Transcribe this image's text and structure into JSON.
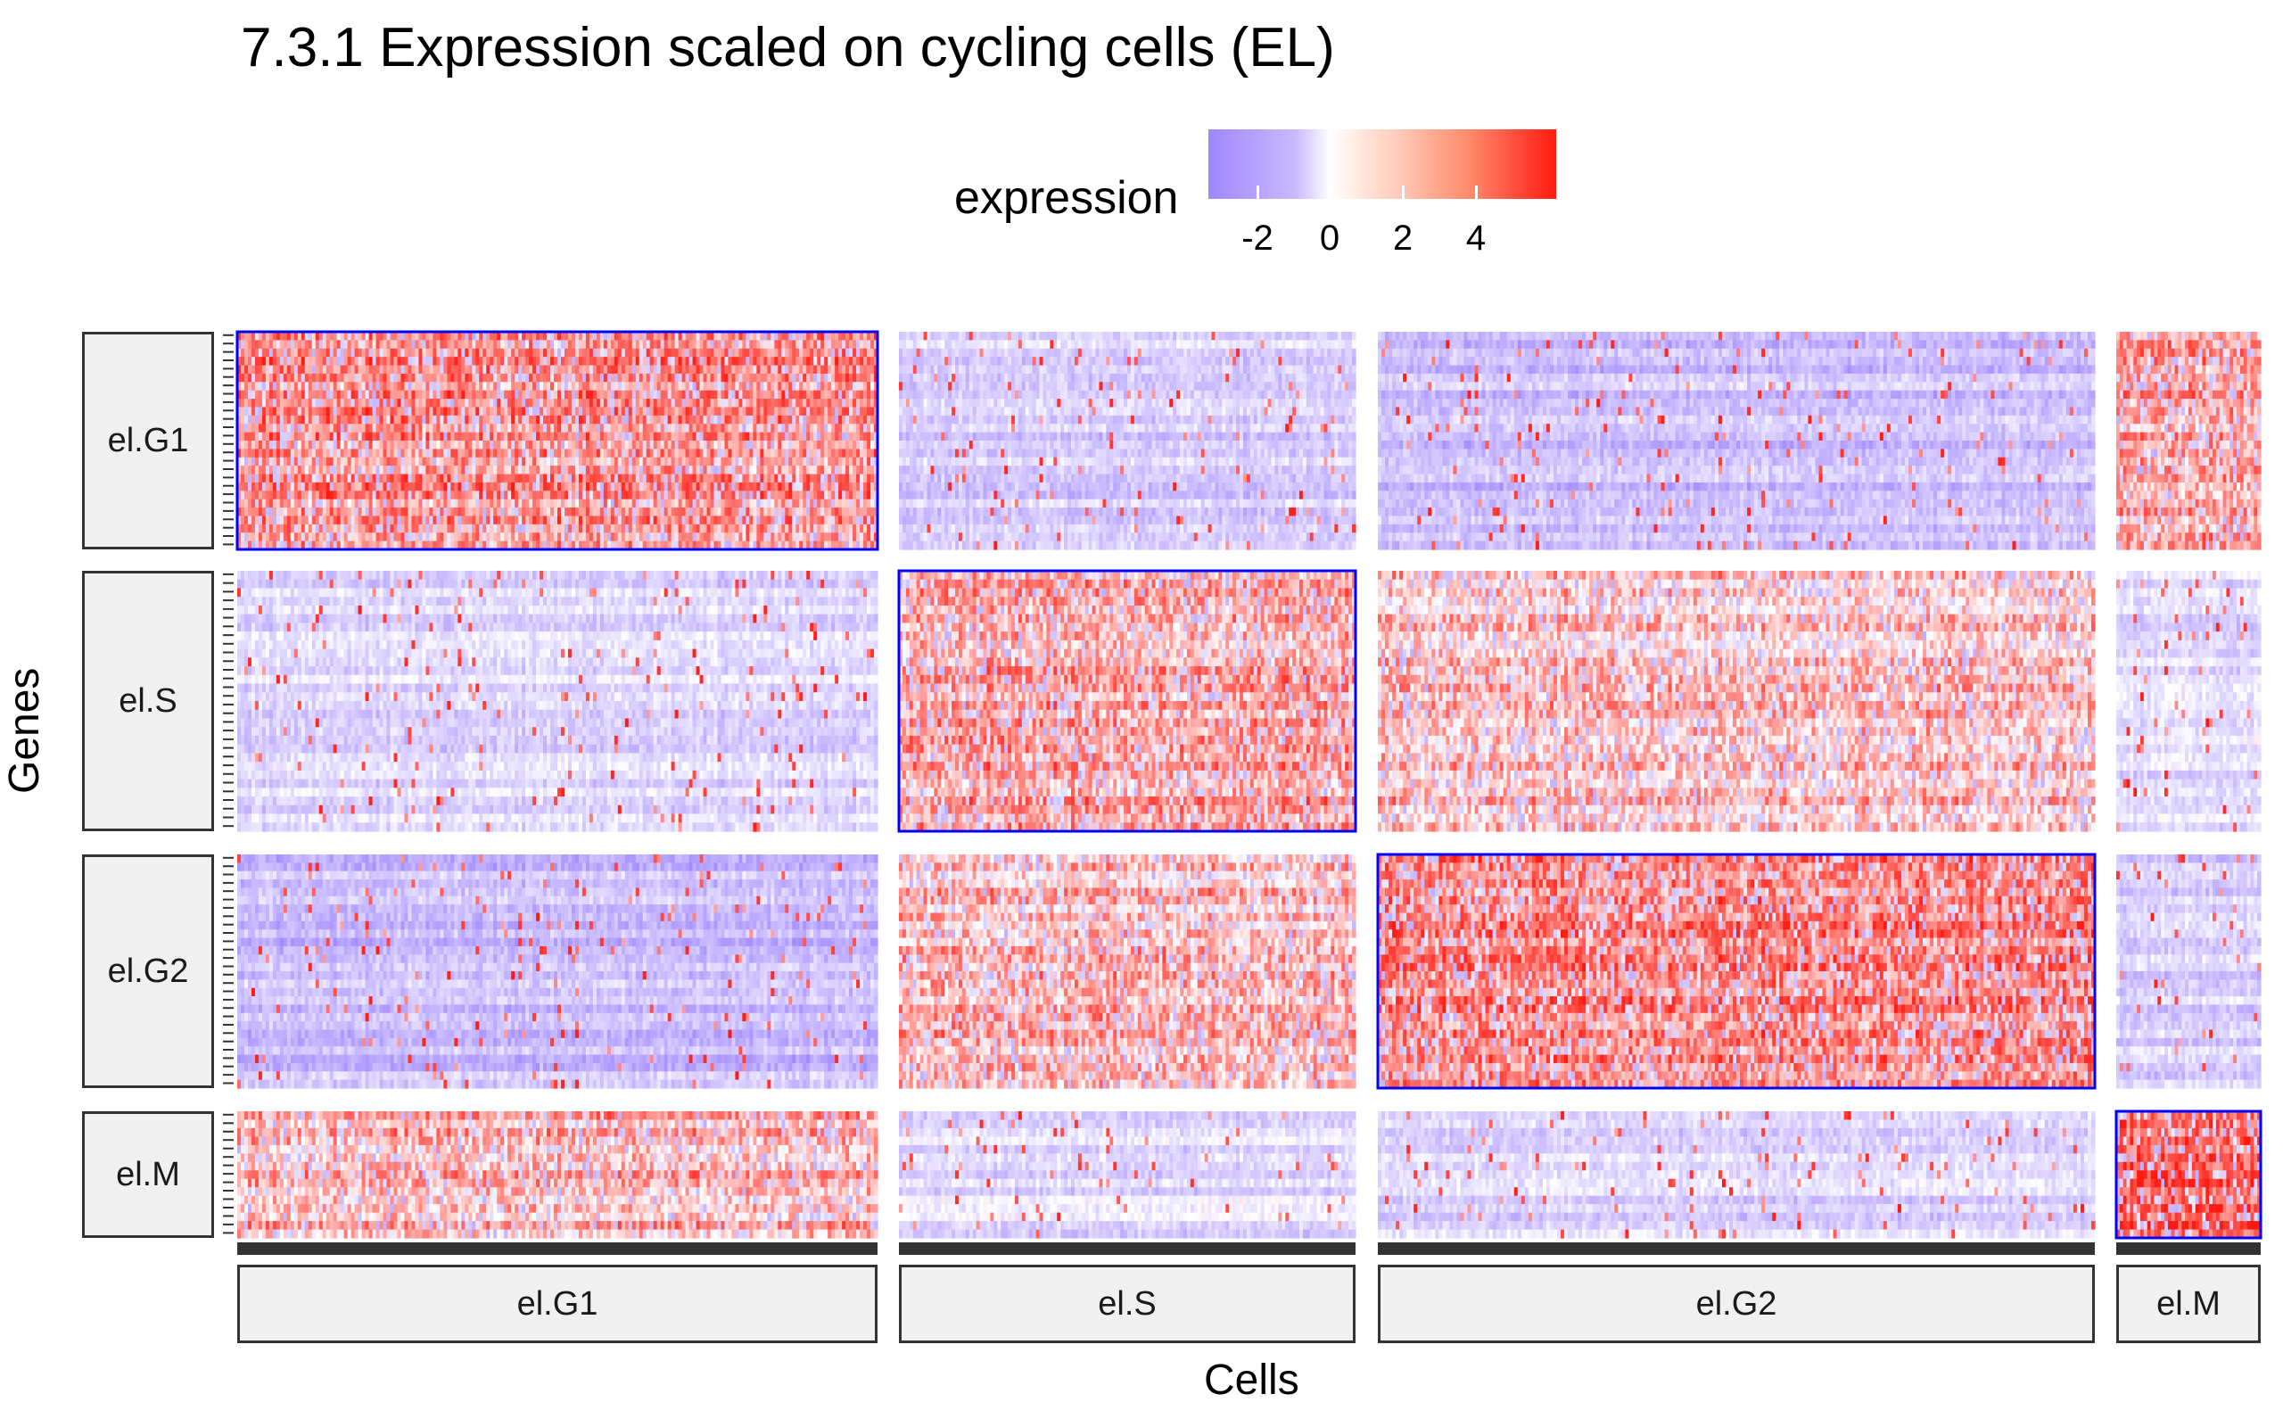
{
  "title": "7.3.1 Expression scaled on cycling cells (EL)",
  "legend": {
    "title": "expression",
    "ticks": [
      "-2",
      "0",
      "2",
      "4"
    ],
    "tick_values": [
      -2,
      0,
      2,
      4
    ],
    "low_color": "#9f86ff",
    "mid_color": "#ffffff",
    "high_color": "#ff1a10"
  },
  "axes": {
    "x_label": "Cells",
    "y_label": "Genes"
  },
  "strips": {
    "columns": [
      "el.G1",
      "el.S",
      "el.G2",
      "el.M"
    ],
    "rows": [
      "el.G1",
      "el.S",
      "el.G2",
      "el.M"
    ]
  },
  "chart_data": {
    "type": "heatmap",
    "title": "7.3.1 Expression scaled on cycling cells (EL)",
    "xlabel": "Cells",
    "ylabel": "Genes",
    "color_scale": {
      "label": "expression",
      "range": [
        -3,
        5.5
      ],
      "midpoint": 0,
      "ticks": [
        -2,
        0,
        2,
        4
      ]
    },
    "column_groups": [
      "el.G1",
      "el.S",
      "el.G2",
      "el.M"
    ],
    "row_groups": [
      "el.G1",
      "el.S",
      "el.G2",
      "el.M"
    ],
    "highlighted_blocks": [
      "el.G1/el.G1",
      "el.S/el.S",
      "el.G2/el.G2",
      "el.M/el.M"
    ],
    "block_mean_expression": [
      [
        2.5,
        -1.2,
        -1.5,
        2.0
      ],
      [
        -1.0,
        2.2,
        1.4,
        -0.8
      ],
      [
        -1.6,
        1.5,
        2.6,
        -1.2
      ],
      [
        1.8,
        -0.8,
        -0.9,
        3.5
      ]
    ],
    "highlight_color": "#0000ff"
  }
}
